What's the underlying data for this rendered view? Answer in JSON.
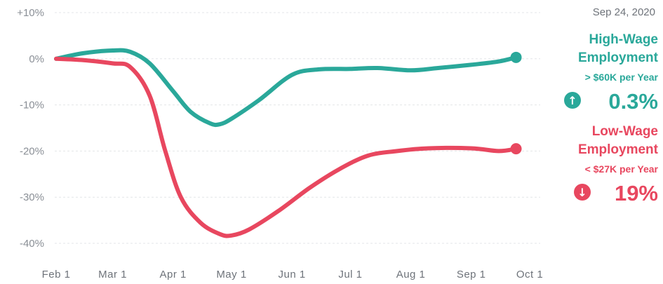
{
  "date": "Sep 24, 2020",
  "colors": {
    "high": "#2aa89a",
    "low": "#e8475f",
    "grid": "#e3e5e8"
  },
  "legend": {
    "high": {
      "title_line1": "High-Wage",
      "title_line2": "Employment",
      "subtitle": "> $60K per Year",
      "arrow_icon": "arrow-up-icon",
      "value": "0.3%"
    },
    "low": {
      "title_line1": "Low-Wage",
      "title_line2": "Employment",
      "subtitle": "< $27K per Year",
      "arrow_icon": "arrow-down-icon",
      "value": "19%"
    }
  },
  "chart_data": {
    "type": "line",
    "ylim": [
      -40,
      10
    ],
    "y_ticks": [
      10,
      0,
      -10,
      -20,
      -30,
      -40
    ],
    "y_tick_labels": [
      "+10%",
      "0%",
      "-10%",
      "-20%",
      "-30%",
      "-40%"
    ],
    "x_ticks": [
      "2020-02-01",
      "2020-03-01",
      "2020-04-01",
      "2020-05-01",
      "2020-06-01",
      "2020-07-01",
      "2020-08-01",
      "2020-09-01",
      "2020-10-01"
    ],
    "x_tick_labels": [
      "Feb 1",
      "Mar 1",
      "Apr 1",
      "May 1",
      "Jun 1",
      "Jul 1",
      "Aug 1",
      "Sep 1",
      "Oct 1"
    ],
    "grid": true,
    "series": [
      {
        "name": "High-Wage Employment",
        "points": [
          [
            "2020-02-01",
            0
          ],
          [
            "2020-02-15",
            1.2
          ],
          [
            "2020-03-01",
            1.8
          ],
          [
            "2020-03-10",
            1.5
          ],
          [
            "2020-03-20",
            -1
          ],
          [
            "2020-04-01",
            -7
          ],
          [
            "2020-04-10",
            -11.5
          ],
          [
            "2020-04-20",
            -14
          ],
          [
            "2020-04-25",
            -14.2
          ],
          [
            "2020-05-01",
            -13
          ],
          [
            "2020-05-15",
            -9
          ],
          [
            "2020-06-01",
            -3.5
          ],
          [
            "2020-06-15",
            -2.3
          ],
          [
            "2020-07-01",
            -2.2
          ],
          [
            "2020-07-15",
            -2
          ],
          [
            "2020-08-01",
            -2.5
          ],
          [
            "2020-08-15",
            -2
          ],
          [
            "2020-09-01",
            -1.3
          ],
          [
            "2020-09-15",
            -0.6
          ],
          [
            "2020-09-24",
            0.3
          ]
        ]
      },
      {
        "name": "Low-Wage Employment",
        "points": [
          [
            "2020-02-01",
            0
          ],
          [
            "2020-02-15",
            -0.3
          ],
          [
            "2020-03-01",
            -1
          ],
          [
            "2020-03-10",
            -1.8
          ],
          [
            "2020-03-20",
            -8
          ],
          [
            "2020-03-28",
            -20
          ],
          [
            "2020-04-05",
            -30
          ],
          [
            "2020-04-15",
            -35.5
          ],
          [
            "2020-04-25",
            -38
          ],
          [
            "2020-05-01",
            -38.3
          ],
          [
            "2020-05-10",
            -37
          ],
          [
            "2020-05-25",
            -33
          ],
          [
            "2020-06-10",
            -28
          ],
          [
            "2020-06-25",
            -24
          ],
          [
            "2020-07-10",
            -21
          ],
          [
            "2020-07-25",
            -20
          ],
          [
            "2020-08-10",
            -19.4
          ],
          [
            "2020-09-01",
            -19.4
          ],
          [
            "2020-09-15",
            -20
          ],
          [
            "2020-09-24",
            -19.5
          ]
        ]
      }
    ]
  }
}
